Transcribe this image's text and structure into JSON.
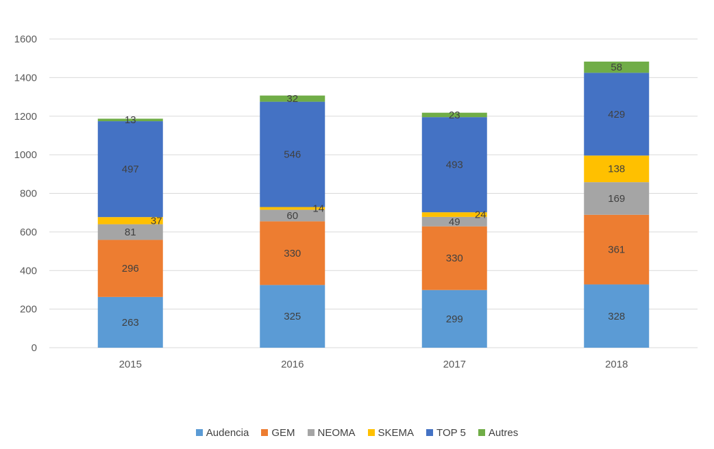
{
  "chart_data": {
    "type": "bar",
    "stacked": true,
    "categories": [
      "2015",
      "2016",
      "2017",
      "2018"
    ],
    "series": [
      {
        "name": "Audencia",
        "color": "#5B9BD5",
        "values": [
          263,
          325,
          299,
          328
        ]
      },
      {
        "name": "GEM",
        "color": "#ED7D31",
        "values": [
          296,
          330,
          330,
          361
        ]
      },
      {
        "name": "NEOMA",
        "color": "#A5A5A5",
        "values": [
          81,
          60,
          49,
          169
        ]
      },
      {
        "name": "SKEMA",
        "color": "#FFC000",
        "values": [
          37,
          14,
          24,
          138
        ]
      },
      {
        "name": "TOP 5",
        "color": "#4472C4",
        "values": [
          497,
          546,
          493,
          429
        ]
      },
      {
        "name": "Autres",
        "color": "#70AD47",
        "values": [
          13,
          32,
          23,
          58
        ]
      }
    ],
    "ylim": [
      0,
      1600
    ],
    "yticks": [
      0,
      200,
      400,
      600,
      800,
      1000,
      1200,
      1400,
      1600
    ],
    "grid": true,
    "legend_position": "bottom",
    "data_labels": true
  }
}
